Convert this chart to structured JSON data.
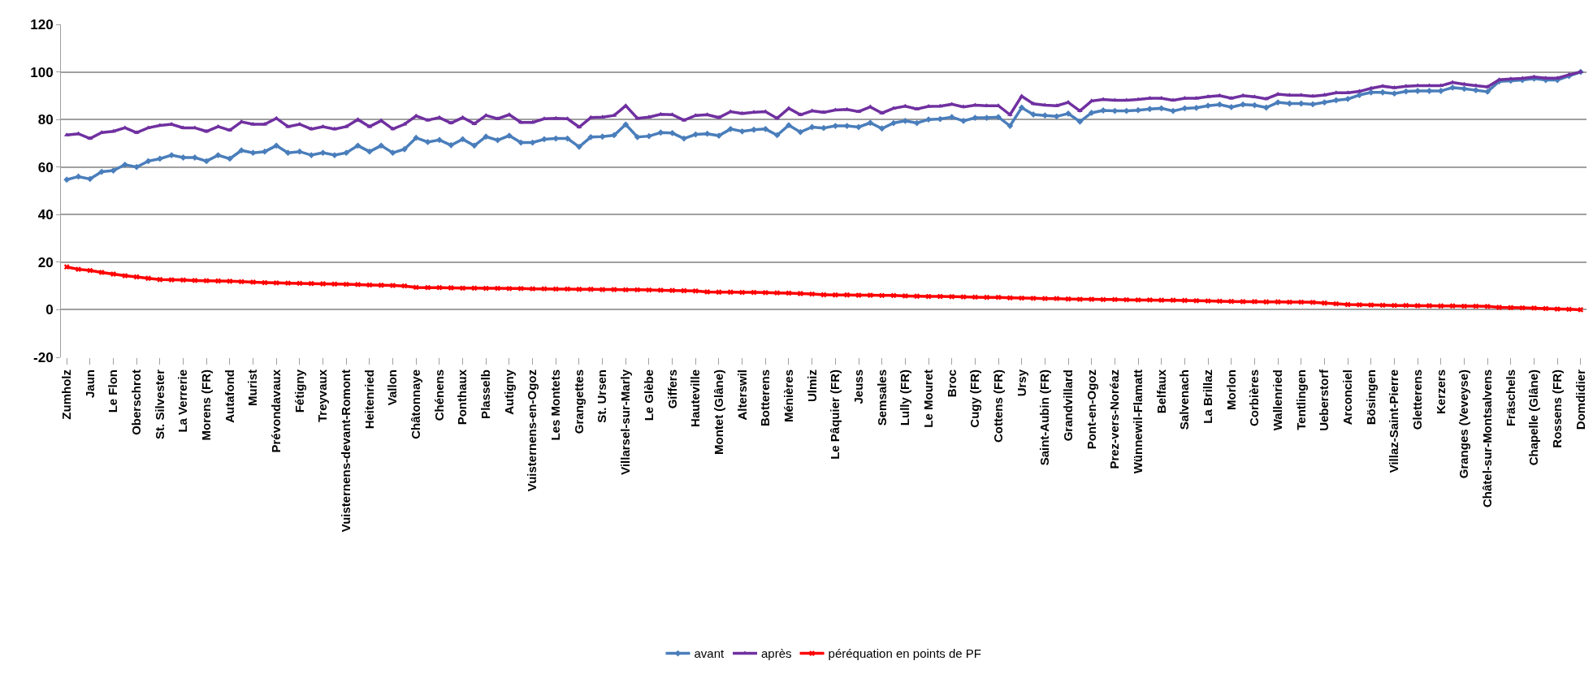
{
  "chart_data": {
    "type": "line",
    "categories": [
      "Zumholz",
      null,
      "Jaun",
      null,
      "Le Flon",
      null,
      "Oberschrot",
      null,
      "St. Silvester",
      null,
      "La Verrerie",
      null,
      "Morens (FR)",
      null,
      "Autafond",
      null,
      "Murist",
      null,
      "Prévondavaux",
      null,
      "Fétigny",
      null,
      "Treyvaux",
      null,
      "Vuisternens-devant-Romont",
      null,
      "Heitenried",
      null,
      "Vallon",
      null,
      "Châtonnaye",
      null,
      "Chénens",
      null,
      "Ponthaux",
      null,
      "Plasselb",
      null,
      "Autigny",
      null,
      "Vuisternens-en-Ogoz",
      null,
      "Les Montets",
      null,
      "Grangettes",
      null,
      "St. Ursen",
      null,
      "Villarsel-sur-Marly",
      null,
      "Le Glèbe",
      null,
      "Giffers",
      null,
      "Hauteville",
      null,
      "Montet (Glâne)",
      null,
      "Alterswil",
      null,
      "Botterens",
      null,
      "Ménières",
      null,
      "Ulmiz",
      null,
      "Le Pâquier (FR)",
      null,
      "Jeuss",
      null,
      "Semsales",
      null,
      "Lully (FR)",
      null,
      "Le Mouret",
      null,
      "Broc",
      null,
      "Cugy (FR)",
      null,
      "Cottens (FR)",
      null,
      "Ursy",
      null,
      "Saint-Aubin (FR)",
      null,
      "Grandvillard",
      null,
      "Pont-en-Ogoz",
      null,
      "Prez-vers-Noréaz",
      null,
      "Wünnewil-Flamatt",
      null,
      "Belfaux",
      null,
      "Salvenach",
      null,
      "La Brillaz",
      null,
      "Morlon",
      null,
      "Corbières",
      null,
      "Wallenried",
      null,
      "Tentlingen",
      null,
      "Ueberstorf",
      null,
      "Arconciel",
      null,
      "Bösingen",
      null,
      "Villaz-Saint-Pierre",
      null,
      "Gletterens",
      null,
      "Kerzers",
      null,
      "Granges (Veveyse)",
      null,
      "Châtel-sur-Montsalvens",
      null,
      "Fräschels",
      null,
      "Chapelle (Glâne)",
      null,
      "Rossens (FR)",
      null,
      "Domdidier"
    ],
    "series": [
      {
        "name": "avant",
        "color": "#4a7ebb",
        "marker": "diamond",
        "values": [
          54.7,
          56,
          55,
          58,
          58.5,
          61,
          60,
          62.5,
          63.5,
          65,
          64,
          64,
          62.5,
          65,
          63.5,
          67,
          66,
          66.5,
          69,
          66,
          66.5,
          65,
          66,
          65,
          66,
          69,
          66.5,
          69,
          66,
          67.5,
          72.3,
          70.5,
          71.4,
          69.2,
          71.7,
          69,
          72.8,
          71.3,
          73.2,
          70.3,
          70.3,
          71.7,
          72,
          72,
          68.5,
          72.6,
          72.8,
          73.4,
          77.9,
          72.6,
          73,
          74.5,
          74.3,
          72,
          73.7,
          74,
          73.2,
          76,
          75,
          75.7,
          76,
          73.4,
          77.6,
          74.7,
          76.8,
          76.4,
          77.3,
          77.3,
          76.8,
          78.6,
          76.2,
          78.5,
          79.4,
          78.5,
          80,
          80.2,
          81,
          79.4,
          80.7,
          80.7,
          81,
          77.3,
          85,
          82.1,
          81.7,
          81.3,
          82.5,
          79.1,
          82.8,
          83.8,
          83.6,
          83.6,
          83.9,
          84.4,
          84.7,
          83.6,
          84.7,
          84.9,
          85.8,
          86.3,
          85.2,
          86.3,
          86,
          85,
          87.2,
          86.7,
          86.7,
          86.4,
          87.2,
          88.1,
          88.6,
          90.3,
          91.4,
          91.4,
          90.9,
          91.8,
          92,
          92,
          92,
          93.4,
          92.9,
          92.3,
          91.7,
          96,
          96.3,
          96.6,
          97.2,
          96.6,
          96.6,
          98.3,
          100
        ]
      },
      {
        "name": "après",
        "color": "#7030a0",
        "marker": "triangle",
        "values": [
          73.5,
          74,
          72,
          74.5,
          75,
          76.5,
          74.5,
          76.5,
          77.5,
          78,
          76.5,
          76.5,
          75,
          77,
          75.5,
          79,
          78,
          78,
          80.5,
          77,
          78,
          76,
          77,
          76,
          77,
          80,
          77,
          79.5,
          76,
          78,
          81.5,
          79.7,
          80.8,
          78.5,
          80.8,
          78.2,
          81.7,
          80.3,
          82,
          78.8,
          78.8,
          80.3,
          80.5,
          80.3,
          76.8,
          80.8,
          81,
          81.7,
          85.8,
          80.5,
          81,
          82.2,
          82,
          79.7,
          81.7,
          82,
          80.8,
          83.3,
          82.5,
          83,
          83.3,
          80.5,
          84.7,
          82,
          83.6,
          83,
          84,
          84.2,
          83.3,
          85.3,
          82.7,
          84.7,
          85.6,
          84.4,
          85.5,
          85.6,
          86.4,
          85.3,
          86,
          85.8,
          85.8,
          82,
          89.8,
          86.6,
          86,
          85.8,
          87.2,
          83.6,
          87.8,
          88.4,
          88.1,
          88.1,
          88.4,
          88.9,
          88.9,
          88.1,
          88.9,
          88.9,
          89.6,
          90,
          88.9,
          90,
          89.5,
          88.7,
          90.6,
          90.2,
          90.2,
          89.8,
          90.3,
          91.2,
          91.2,
          91.8,
          93.1,
          94,
          93.4,
          94,
          94.2,
          94.2,
          94.2,
          95.6,
          94.8,
          94.2,
          93.7,
          96.7,
          97,
          97.3,
          97.9,
          97.4,
          97.4,
          98.8,
          100
        ]
      },
      {
        "name": "péréquation en points de PF",
        "color": "#ff0000",
        "marker": "cross",
        "values": [
          18,
          17,
          16.5,
          15.7,
          15,
          14.3,
          13.8,
          13.2,
          12.7,
          12.6,
          12.5,
          12.3,
          12.2,
          12.1,
          12,
          11.8,
          11.6,
          11.4,
          11.3,
          11.2,
          11.1,
          11,
          10.9,
          10.8,
          10.7,
          10.6,
          10.4,
          10.3,
          10.2,
          10,
          9.4,
          9.3,
          9.3,
          9.2,
          9.1,
          9.1,
          9,
          9,
          8.9,
          8.9,
          8.8,
          8.8,
          8.7,
          8.7,
          8.6,
          8.6,
          8.5,
          8.5,
          8.4,
          8.4,
          8.3,
          8.2,
          8.1,
          8,
          7.9,
          7.5,
          7.4,
          7.4,
          7.3,
          7.3,
          7.2,
          7.1,
          7,
          6.8,
          6.6,
          6.3,
          6.2,
          6.2,
          6.1,
          6.1,
          6,
          6,
          5.8,
          5.7,
          5.6,
          5.6,
          5.5,
          5.4,
          5.3,
          5.2,
          5.2,
          5,
          4.9,
          4.8,
          4.7,
          4.7,
          4.5,
          4.4,
          4.4,
          4.3,
          4.3,
          4.2,
          4.1,
          4.1,
          4,
          4,
          3.9,
          3.8,
          3.7,
          3.6,
          3.5,
          3.4,
          3.4,
          3.3,
          3.3,
          3.2,
          3.2,
          3.1,
          2.8,
          2.5,
          2.2,
          2.1,
          2,
          1.9,
          1.8,
          1.8,
          1.7,
          1.7,
          1.6,
          1.6,
          1.5,
          1.5,
          1.4,
          1,
          0.9,
          0.8,
          0.7,
          0.5,
          0.3,
          0.2,
          0
        ]
      }
    ],
    "ylim": [
      -20,
      120
    ],
    "yticks": [
      -20,
      0,
      20,
      40,
      60,
      80,
      100,
      120
    ],
    "grid": "y",
    "legend": "bottom",
    "line_style": "solid"
  }
}
